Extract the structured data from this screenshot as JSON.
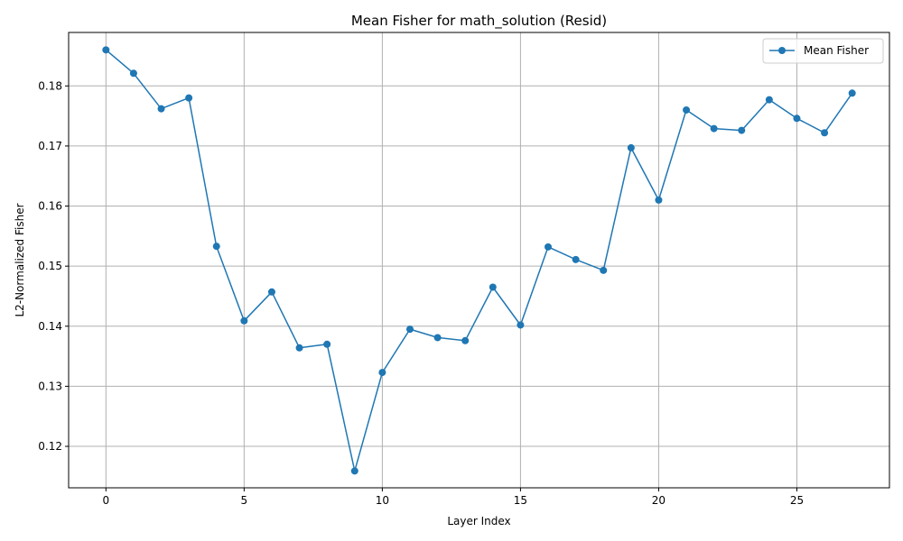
{
  "chart_data": {
    "type": "line",
    "title": "Mean Fisher for math_solution (Resid)",
    "xlabel": "Layer Index",
    "ylabel": "L2-Normalized Fisher",
    "xlim": [
      -1.35,
      28.35
    ],
    "ylim": [
      0.1131,
      0.1889
    ],
    "xticks": [
      0,
      5,
      10,
      15,
      20,
      25
    ],
    "yticks": [
      0.12,
      0.13,
      0.14,
      0.15,
      0.16,
      0.17,
      0.18
    ],
    "ytick_labels": [
      "0.12",
      "0.13",
      "0.14",
      "0.15",
      "0.16",
      "0.17",
      "0.18"
    ],
    "grid": true,
    "legend_position": "top-right",
    "series": [
      {
        "name": "Mean Fisher",
        "color": "#1f77b4",
        "marker": "circle",
        "x": [
          0,
          1,
          2,
          3,
          4,
          5,
          6,
          7,
          8,
          9,
          10,
          11,
          12,
          13,
          14,
          15,
          16,
          17,
          18,
          19,
          20,
          21,
          22,
          23,
          24,
          25,
          26,
          27
        ],
        "values": [
          0.186,
          0.1821,
          0.1762,
          0.178,
          0.1533,
          0.1409,
          0.1457,
          0.1364,
          0.137,
          0.1159,
          0.1323,
          0.1395,
          0.1381,
          0.1376,
          0.1465,
          0.1402,
          0.1532,
          0.1511,
          0.1493,
          0.1697,
          0.161,
          0.176,
          0.1729,
          0.1726,
          0.1777,
          0.1746,
          0.1722,
          0.1788
        ]
      }
    ]
  }
}
